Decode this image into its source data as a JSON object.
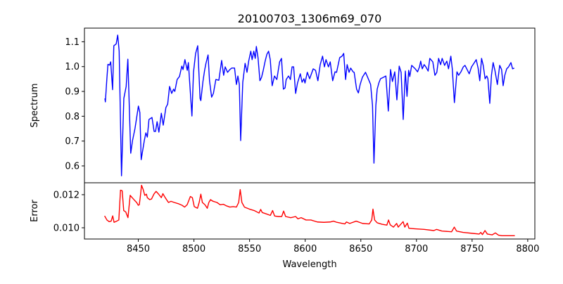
{
  "chart_data": [
    {
      "type": "line",
      "title": "20100703_1306m69_070",
      "xlabel": "",
      "ylabel": "Spectrum",
      "xlim": [
        8401.6,
        8806.4
      ],
      "ylim": [
        0.532,
        1.155
      ],
      "yticks": [
        "0.6",
        "0.7",
        "0.8",
        "0.9",
        "1.0",
        "1.1"
      ],
      "ytick_values": [
        0.6,
        0.7,
        0.8,
        0.9,
        1.0,
        1.1
      ],
      "grid": false,
      "series": [
        {
          "name": "Spectrum",
          "color": "#0000ff",
          "x": [
            8420.0,
            8420.4,
            8421.7,
            8422.7,
            8424.2,
            8425.2,
            8426.9,
            8428.0,
            8430.1,
            8431.5,
            8432.8,
            8434.9,
            8437.0,
            8439.1,
            8440.6,
            8443.2,
            8444.8,
            8447.0,
            8450.1,
            8451.4,
            8452.6,
            8455.4,
            8456.8,
            8458.1,
            8459.6,
            8462.3,
            8464.2,
            8465.5,
            8466.9,
            8468.5,
            8470.7,
            8472.4,
            8474.8,
            8476.4,
            8478.1,
            8480.0,
            8481.7,
            8482.8,
            8484.9,
            8487.0,
            8489.1,
            8490.2,
            8491.9,
            8494.0,
            8495.0,
            8498.2,
            8499.6,
            8501.5,
            8503.4,
            8505.5,
            8506.2,
            8508.1,
            8509.6,
            8510.8,
            8512.7,
            8514.0,
            8515.9,
            8517.5,
            8519.7,
            8522.4,
            8524.9,
            8526.7,
            8528.1,
            8530.2,
            8532.3,
            8534.0,
            8536.5,
            8538.2,
            8539.5,
            8540.8,
            8542.0,
            8543.9,
            8546.0,
            8547.7,
            8549.2,
            8551.1,
            8552.3,
            8553.8,
            8555.1,
            8556.1,
            8557.6,
            8559.3,
            8560.8,
            8562.3,
            8564.0,
            8565.6,
            8567.1,
            8568.6,
            8570.3,
            8572.4,
            8574.5,
            8577.0,
            8578.7,
            8580.4,
            8581.9,
            8582.9,
            8585.0,
            8586.7,
            8588.2,
            8589.6,
            8591.4,
            8593.1,
            8595.6,
            8597.2,
            8598.8,
            8599.8,
            8601.9,
            8604.0,
            8607.2,
            8609.3,
            8611.4,
            8613.5,
            8615.6,
            8617.3,
            8618.7,
            8620.9,
            8622.5,
            8624.7,
            8626.8,
            8628.2,
            8631.0,
            8633.1,
            8634.6,
            8636.3,
            8637.7,
            8639.4,
            8640.9,
            8643.0,
            8644.0,
            8646.2,
            8647.8,
            8649.4,
            8651.4,
            8654.2,
            8656.7,
            8658.8,
            8660.5,
            8661.8,
            8663.5,
            8664.7,
            8666.2,
            8667.7,
            8670.4,
            8672.5,
            8674.7,
            8676.7,
            8678.4,
            8680.5,
            8682.4,
            8684.5,
            8686.2,
            8688.1,
            8690.0,
            8691.5,
            8693.0,
            8694.0,
            8695.7,
            8698.9,
            8701.0,
            8702.7,
            8703.8,
            8705.2,
            8706.9,
            8708.4,
            8710.5,
            8712.0,
            8714.7,
            8716.6,
            8718.3,
            8719.9,
            8721.7,
            8723.1,
            8725.3,
            8727.3,
            8728.8,
            8730.9,
            8732.2,
            8734.1,
            8736.4,
            8737.9,
            8740.0,
            8742.1,
            8743.6,
            8745.2,
            8747.4,
            8749.5,
            8751.6,
            8753.7,
            8755.4,
            8756.9,
            8758.5,
            8760.0,
            8761.7,
            8763.2,
            8764.2,
            8765.9,
            8767.4,
            8768.9,
            8770.5,
            8772.7,
            8774.8,
            8776.5,
            8777.9,
            8779.4,
            8781.1,
            8782.8,
            8784.9,
            8786.4,
            8787.9
          ],
          "y": [
            0.872,
            0.858,
            0.948,
            1.009,
            1.006,
            1.019,
            0.907,
            1.084,
            1.091,
            1.127,
            1.062,
            0.56,
            0.872,
            0.92,
            1.03,
            0.651,
            0.702,
            0.75,
            0.841,
            0.815,
            0.625,
            0.702,
            0.733,
            0.716,
            0.787,
            0.795,
            0.739,
            0.739,
            0.778,
            0.736,
            0.812,
            0.764,
            0.835,
            0.849,
            0.92,
            0.892,
            0.909,
            0.9,
            0.948,
            0.96,
            1.002,
            0.988,
            1.028,
            0.985,
            1.016,
            0.801,
            0.977,
            1.053,
            1.084,
            0.872,
            0.863,
            0.94,
            0.985,
            1.013,
            1.047,
            0.943,
            0.877,
            0.892,
            0.948,
            0.945,
            1.025,
            0.965,
            0.999,
            0.977,
            0.988,
            0.994,
            0.994,
            0.928,
            0.962,
            0.928,
            0.702,
            0.937,
            1.013,
            0.977,
            1.022,
            1.062,
            1.028,
            1.062,
            1.033,
            1.081,
            1.036,
            0.943,
            0.957,
            0.985,
            1.022,
            1.05,
            1.062,
            1.028,
            0.923,
            0.962,
            0.948,
            1.019,
            1.033,
            0.909,
            0.914,
            0.948,
            0.962,
            0.948,
            0.999,
            0.999,
            0.892,
            0.934,
            0.971,
            0.937,
            0.951,
            0.934,
            0.977,
            0.951,
            0.991,
            0.985,
            0.943,
            1.008,
            1.042,
            0.999,
            1.028,
            0.999,
            1.019,
            0.943,
            0.979,
            0.977,
            1.036,
            1.042,
            1.053,
            0.948,
            1.008,
            0.977,
            0.994,
            0.979,
            0.977,
            0.909,
            0.894,
            0.928,
            0.957,
            0.977,
            0.951,
            0.928,
            0.843,
            0.611,
            0.843,
            0.909,
            0.934,
            0.951,
            0.957,
            0.962,
            0.821,
            0.988,
            0.94,
            0.979,
            0.866,
            1.002,
            0.977,
            0.787,
            0.982,
            0.88,
            0.985,
            0.96,
            1.005,
            0.991,
            0.979,
            0.999,
            1.022,
            0.991,
            1.008,
            0.999,
            0.982,
            1.033,
            1.019,
            0.965,
            0.977,
            1.033,
            1.008,
            1.033,
            1.005,
            1.022,
            0.991,
            1.042,
            0.991,
            0.855,
            0.979,
            0.965,
            0.979,
            0.999,
            1.005,
            0.991,
            0.971,
            0.999,
            1.013,
            1.028,
            0.994,
            0.943,
            1.033,
            1.005,
            0.951,
            0.962,
            0.951,
            0.852,
            0.965,
            1.016,
            0.985,
            0.928,
            1.005,
            0.988,
            0.923,
            0.965,
            0.991,
            0.999,
            1.016,
            0.991,
            0.994
          ]
        }
      ]
    },
    {
      "type": "line",
      "title": "",
      "xlabel": "Wavelength",
      "ylabel": "Error",
      "xlim": [
        8401.6,
        8806.4
      ],
      "ylim": [
        0.00932,
        0.01272
      ],
      "xticks": [
        "8450",
        "8500",
        "8550",
        "8600",
        "8650",
        "8700",
        "8750",
        "8800"
      ],
      "xtick_values": [
        8450,
        8500,
        8550,
        8600,
        8650,
        8700,
        8750,
        8800
      ],
      "yticks": [
        "0.010",
        "0.012"
      ],
      "ytick_values": [
        0.01,
        0.012
      ],
      "grid": false,
      "series": [
        {
          "name": "Error",
          "color": "#ff0000",
          "x": [
            8419.7,
            8421.8,
            8423.8,
            8425.6,
            8427.0,
            8428.2,
            8430.5,
            8432.5,
            8434.0,
            8435.5,
            8436.9,
            8438.7,
            8440.7,
            8442.7,
            8444.5,
            8446.5,
            8448.5,
            8450.0,
            8450.9,
            8451.7,
            8452.9,
            8454.4,
            8455.8,
            8457.3,
            8458.1,
            8460.2,
            8461.9,
            8464.0,
            8466.0,
            8468.3,
            8470.7,
            8472.1,
            8474.2,
            8477.1,
            8479.4,
            8482.3,
            8485.8,
            8489.3,
            8491.6,
            8493.9,
            8496.8,
            8498.6,
            8500.3,
            8503.2,
            8504.7,
            8506.2,
            8507.6,
            8509.9,
            8512.0,
            8513.4,
            8514.9,
            8517.2,
            8520.7,
            8523.6,
            8526.5,
            8529.4,
            8532.3,
            8535.2,
            8538.2,
            8540.2,
            8541.6,
            8543.1,
            8545.4,
            8549.8,
            8554.2,
            8558.5,
            8560.0,
            8561.4,
            8565.8,
            8568.7,
            8570.7,
            8572.5,
            8576.0,
            8578.9,
            8580.6,
            8582.4,
            8587.0,
            8591.4,
            8593.4,
            8596.4,
            8600.7,
            8605.1,
            8610.9,
            8616.7,
            8622.5,
            8625.4,
            8628.4,
            8635.6,
            8637.1,
            8640.0,
            8645.8,
            8651.6,
            8657.5,
            8659.8,
            8660.9,
            8662.4,
            8664.7,
            8669.1,
            8673.4,
            8674.9,
            8676.4,
            8679.3,
            8682.2,
            8683.6,
            8688.0,
            8689.5,
            8691.8,
            8693.2,
            8698.2,
            8706.9,
            8715.6,
            8718.0,
            8722.9,
            8731.6,
            8734.0,
            8736.0,
            8741.8,
            8750.6,
            8756.4,
            8757.8,
            8759.3,
            8761.6,
            8763.7,
            8768.0,
            8770.9,
            8773.8,
            8776.7,
            8781.1,
            8788.4
          ],
          "y": [
            0.01072,
            0.01047,
            0.01037,
            0.0104,
            0.01072,
            0.01033,
            0.0104,
            0.01047,
            0.01227,
            0.01224,
            0.01104,
            0.01096,
            0.01061,
            0.01196,
            0.01182,
            0.01167,
            0.01153,
            0.01136,
            0.01139,
            0.01182,
            0.01257,
            0.01231,
            0.01196,
            0.01203,
            0.01182,
            0.0117,
            0.01174,
            0.01203,
            0.0122,
            0.01203,
            0.01182,
            0.01206,
            0.01182,
            0.01153,
            0.0116,
            0.01153,
            0.01146,
            0.01136,
            0.01125,
            0.01139,
            0.01189,
            0.01182,
            0.01128,
            0.01118,
            0.01153,
            0.01203,
            0.01153,
            0.01139,
            0.01118,
            0.01153,
            0.0117,
            0.0116,
            0.01153,
            0.01139,
            0.01142,
            0.01132,
            0.01125,
            0.01128,
            0.01125,
            0.01153,
            0.01231,
            0.01153,
            0.01125,
            0.01113,
            0.01104,
            0.01089,
            0.01111,
            0.01092,
            0.01082,
            0.01075,
            0.01104,
            0.01071,
            0.01068,
            0.01068,
            0.01101,
            0.01068,
            0.01061,
            0.01068,
            0.01054,
            0.01061,
            0.01047,
            0.01047,
            0.01035,
            0.01033,
            0.01035,
            0.0104,
            0.01033,
            0.01023,
            0.01035,
            0.01026,
            0.0104,
            0.01026,
            0.01023,
            0.01047,
            0.01113,
            0.01047,
            0.0103,
            0.01021,
            0.01016,
            0.01047,
            0.01018,
            0.01004,
            0.01026,
            0.01004,
            0.01037,
            0.01004,
            0.01028,
            0.00997,
            0.00994,
            0.0099,
            0.00983,
            0.0099,
            0.0098,
            0.00976,
            0.01004,
            0.0098,
            0.00972,
            0.00966,
            0.00962,
            0.00972,
            0.00959,
            0.00983,
            0.00962,
            0.00957,
            0.00969,
            0.00955,
            0.00952,
            0.00952,
            0.00952
          ]
        }
      ]
    }
  ]
}
